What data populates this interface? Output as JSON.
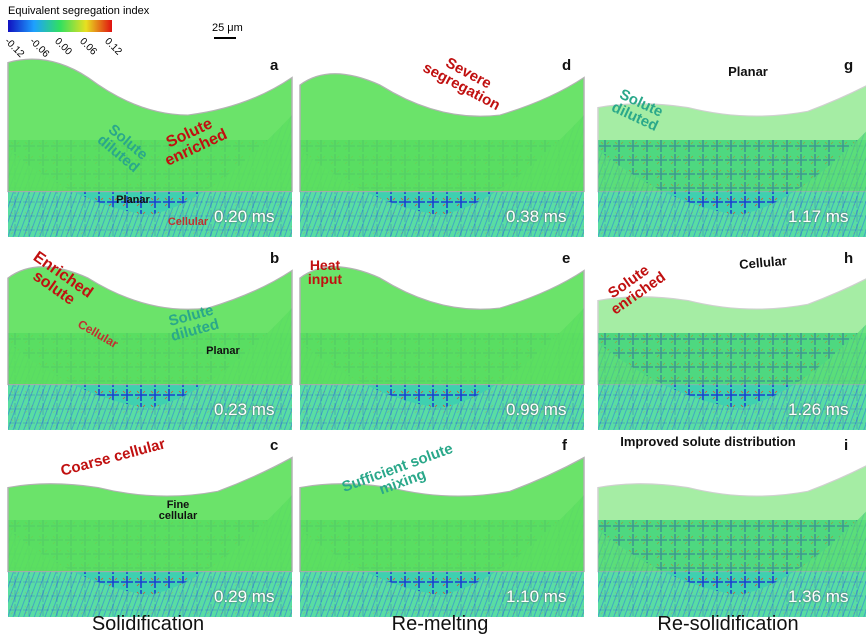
{
  "colorbar": {
    "title": "Equivalent segregation index",
    "ticks": [
      "-0.12",
      "-0.06",
      "0.00",
      "0.06",
      "0.12"
    ]
  },
  "scale_bar": "25 μm",
  "panels": [
    {
      "letter": "a",
      "time": "0.20 ms",
      "annotations": [
        "Solute diluted",
        "Solute enriched",
        "Planar",
        "Cellular"
      ]
    },
    {
      "letter": "b",
      "time": "0.23 ms",
      "annotations": [
        "Enriched solute",
        "Solute diluted",
        "Cellular",
        "Planar"
      ]
    },
    {
      "letter": "c",
      "time": "0.29 ms",
      "annotations": [
        "Coarse cellular",
        "Fine cellular"
      ]
    },
    {
      "letter": "d",
      "time": "0.38 ms",
      "annotations": [
        "Severe segregation"
      ]
    },
    {
      "letter": "e",
      "time": "0.99 ms",
      "annotations": [
        "Heat input"
      ]
    },
    {
      "letter": "f",
      "time": "1.10 ms",
      "annotations": [
        "Sufficient solute mixing"
      ]
    },
    {
      "letter": "g",
      "time": "1.17 ms",
      "annotations": [
        "Planar",
        "Solute diluted"
      ]
    },
    {
      "letter": "h",
      "time": "1.26 ms",
      "annotations": [
        "Cellular",
        "Solute enriched"
      ]
    },
    {
      "letter": "i",
      "time": "1.36 ms",
      "annotations": [
        "Improved solute distribution"
      ]
    }
  ],
  "columns": [
    "Solidification",
    "Re-melting",
    "Re-solidification"
  ]
}
